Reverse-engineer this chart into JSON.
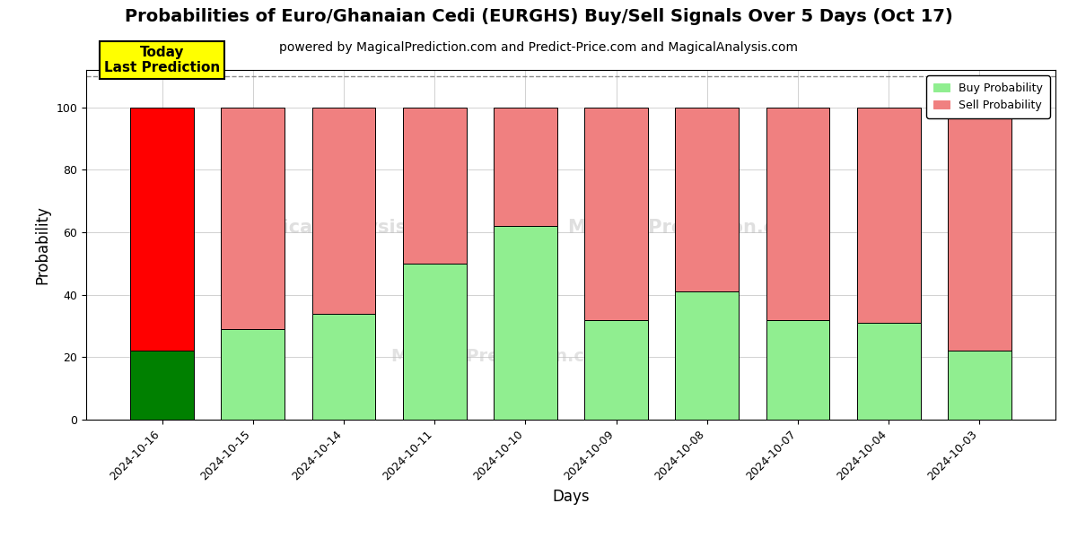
{
  "title": "Probabilities of Euro/Ghanaian Cedi (EURGHS) Buy/Sell Signals Over 5 Days (Oct 17)",
  "subtitle": "powered by MagicalPrediction.com and Predict-Price.com and MagicalAnalysis.com",
  "xlabel": "Days",
  "ylabel": "Probability",
  "dates": [
    "2024-10-16",
    "2024-10-15",
    "2024-10-14",
    "2024-10-11",
    "2024-10-10",
    "2024-10-09",
    "2024-10-08",
    "2024-10-07",
    "2024-10-04",
    "2024-10-03"
  ],
  "buy_values": [
    22,
    29,
    34,
    50,
    62,
    32,
    41,
    32,
    31,
    22
  ],
  "sell_values": [
    78,
    71,
    66,
    50,
    38,
    68,
    59,
    68,
    69,
    78
  ],
  "buy_color_today": "#008000",
  "sell_color_today": "#ff0000",
  "buy_color_normal": "#90ee90",
  "sell_color_normal": "#f08080",
  "today_label_bg": "#ffff00",
  "today_label_text": "Today\nLast Prediction",
  "legend_buy": "Buy Probability",
  "legend_sell": "Sell Probability",
  "ylim": [
    0,
    112
  ],
  "yticks": [
    0,
    20,
    40,
    60,
    80,
    100
  ],
  "dashed_line_y": 110,
  "background_color": "#ffffff",
  "title_fontsize": 14,
  "subtitle_fontsize": 10,
  "axis_label_fontsize": 12,
  "tick_label_fontsize": 9,
  "bar_width": 0.7
}
